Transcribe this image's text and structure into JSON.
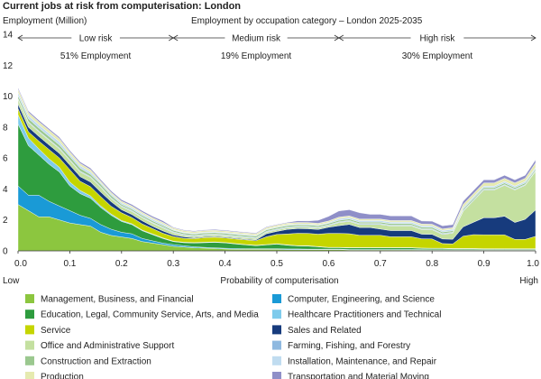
{
  "chart_data": {
    "type": "area",
    "title": "Current jobs at risk from computerisation: London",
    "subtitle": "Employment by occupation category – London 2025-2035",
    "ylabel": "Employment (Million)",
    "xlabel": "Probability of computerisation",
    "x_low_label": "Low",
    "x_high_label": "High",
    "ylim": [
      0,
      14
    ],
    "xlim": [
      0,
      1
    ],
    "y_ticks": [
      "0",
      "2",
      "4",
      "6",
      "8",
      "10",
      "12",
      "14"
    ],
    "x_ticks": [
      "0.0",
      "0.1",
      "0.2",
      "0.3",
      "0.4",
      "0.5",
      "0.6",
      "0.7",
      "0.8",
      "0.9",
      "1.0"
    ],
    "risk_bands": [
      {
        "label": "Low risk",
        "from": 0.0,
        "to": 0.3,
        "share": "51% Employment"
      },
      {
        "label": "Medium risk",
        "from": 0.3,
        "to": 0.62,
        "share": "19% Employment"
      },
      {
        "label": "High risk",
        "from": 0.62,
        "to": 1.0,
        "share": "30% Employment"
      }
    ],
    "x": [
      0.0,
      0.02,
      0.04,
      0.06,
      0.08,
      0.1,
      0.12,
      0.14,
      0.16,
      0.18,
      0.2,
      0.22,
      0.24,
      0.26,
      0.28,
      0.3,
      0.32,
      0.34,
      0.36,
      0.38,
      0.4,
      0.42,
      0.44,
      0.46,
      0.48,
      0.5,
      0.52,
      0.54,
      0.56,
      0.58,
      0.6,
      0.62,
      0.64,
      0.66,
      0.68,
      0.7,
      0.72,
      0.74,
      0.76,
      0.78,
      0.8,
      0.82,
      0.84,
      0.86,
      0.88,
      0.9,
      0.92,
      0.94,
      0.96,
      0.98,
      1.0
    ],
    "series": [
      {
        "name": "Management, Business, and Financial",
        "color": "#8cc63f",
        "values": [
          3.0,
          2.6,
          2.2,
          2.2,
          2.0,
          1.8,
          1.7,
          1.6,
          1.2,
          1.0,
          0.9,
          0.8,
          0.6,
          0.5,
          0.4,
          0.3,
          0.25,
          0.2,
          0.18,
          0.15,
          0.12,
          0.1,
          0.1,
          0.1,
          0.1,
          0.1,
          0.08,
          0.08,
          0.08,
          0.08,
          0.08,
          0.08,
          0.06,
          0.06,
          0.06,
          0.06,
          0.06,
          0.06,
          0.06,
          0.05,
          0.05,
          0.05,
          0.05,
          0.05,
          0.05,
          0.05,
          0.05,
          0.05,
          0.05,
          0.05,
          0.05
        ]
      },
      {
        "name": "Computer, Engineering, and Science",
        "color": "#1a9ad6",
        "values": [
          1.2,
          1.0,
          1.4,
          1.0,
          0.9,
          0.8,
          0.6,
          0.5,
          0.5,
          0.4,
          0.3,
          0.3,
          0.2,
          0.15,
          0.1,
          0.1,
          0.08,
          0.06,
          0.05,
          0.05,
          0.05,
          0.05,
          0.04,
          0.04,
          0.04,
          0.04,
          0.04,
          0.04,
          0.03,
          0.03,
          0.03,
          0.03,
          0.03,
          0.03,
          0.03,
          0.03,
          0.03,
          0.03,
          0.03,
          0.03,
          0.02,
          0.02,
          0.02,
          0.02,
          0.02,
          0.02,
          0.02,
          0.02,
          0.02,
          0.02,
          0.02
        ]
      },
      {
        "name": "Education, Legal, Community Service, Arts, and Media",
        "color": "#2e9c3e",
        "values": [
          4.0,
          3.2,
          2.6,
          2.4,
          2.2,
          1.6,
          1.4,
          1.3,
          1.1,
          0.9,
          0.7,
          0.6,
          0.5,
          0.4,
          0.3,
          0.2,
          0.2,
          0.25,
          0.3,
          0.35,
          0.35,
          0.3,
          0.25,
          0.2,
          0.25,
          0.3,
          0.25,
          0.2,
          0.2,
          0.15,
          0.1,
          0.1,
          0.1,
          0.1,
          0.1,
          0.1,
          0.1,
          0.1,
          0.1,
          0.08,
          0.08,
          0.08,
          0.06,
          0.06,
          0.06,
          0.05,
          0.05,
          0.05,
          0.05,
          0.05,
          0.05
        ]
      },
      {
        "name": "Healthcare Practitioners and Technical",
        "color": "#7ecbec",
        "values": [
          0.6,
          0.5,
          0.4,
          0.35,
          0.3,
          0.25,
          0.2,
          0.15,
          0.1,
          0.08,
          0.06,
          0.05,
          0.04,
          0.04,
          0.04,
          0.03,
          0.03,
          0.03,
          0.03,
          0.03,
          0.02,
          0.02,
          0.02,
          0.02,
          0.02,
          0.02,
          0.02,
          0.02,
          0.02,
          0.02,
          0.02,
          0.02,
          0.02,
          0.02,
          0.02,
          0.02,
          0.02,
          0.02,
          0.02,
          0.02,
          0.02,
          0.02,
          0.02,
          0.02,
          0.02,
          0.02,
          0.02,
          0.02,
          0.02,
          0.02,
          0.02
        ]
      },
      {
        "name": "Service",
        "color": "#c5d500",
        "values": [
          0.4,
          0.4,
          0.5,
          0.6,
          0.6,
          0.8,
          0.6,
          0.6,
          0.6,
          0.5,
          0.5,
          0.4,
          0.4,
          0.35,
          0.3,
          0.3,
          0.25,
          0.25,
          0.3,
          0.3,
          0.3,
          0.3,
          0.3,
          0.3,
          0.5,
          0.6,
          0.7,
          0.8,
          0.8,
          0.8,
          0.9,
          0.9,
          0.9,
          0.8,
          0.8,
          0.8,
          0.7,
          0.7,
          0.7,
          0.6,
          0.6,
          0.3,
          0.3,
          0.8,
          0.9,
          0.9,
          0.9,
          0.9,
          0.6,
          0.6,
          0.8
        ]
      },
      {
        "name": "Sales and Related",
        "color": "#173b7d",
        "values": [
          0.3,
          0.3,
          0.3,
          0.3,
          0.3,
          0.3,
          0.3,
          0.3,
          0.3,
          0.3,
          0.2,
          0.2,
          0.2,
          0.15,
          0.15,
          0.1,
          0.1,
          0.05,
          0.05,
          0.05,
          0.05,
          0.05,
          0.05,
          0.05,
          0.2,
          0.2,
          0.3,
          0.3,
          0.3,
          0.3,
          0.4,
          0.5,
          0.6,
          0.5,
          0.5,
          0.4,
          0.4,
          0.4,
          0.4,
          0.3,
          0.3,
          0.3,
          0.3,
          0.6,
          0.8,
          1.1,
          1.1,
          1.2,
          1.1,
          1.3,
          1.7
        ]
      },
      {
        "name": "Office and Administrative Support",
        "color": "#c4e0a0",
        "values": [
          0.3,
          0.3,
          0.3,
          0.3,
          0.3,
          0.3,
          0.3,
          0.3,
          0.3,
          0.2,
          0.2,
          0.2,
          0.2,
          0.2,
          0.2,
          0.15,
          0.1,
          0.1,
          0.1,
          0.1,
          0.1,
          0.1,
          0.1,
          0.1,
          0.1,
          0.1,
          0.1,
          0.1,
          0.1,
          0.1,
          0.1,
          0.2,
          0.2,
          0.2,
          0.2,
          0.3,
          0.3,
          0.3,
          0.3,
          0.3,
          0.3,
          0.3,
          0.4,
          1.0,
          1.4,
          1.8,
          1.8,
          2.0,
          2.1,
          2.2,
          2.5
        ]
      },
      {
        "name": "Farming, Fishing, and Forestry",
        "color": "#8fb9e0",
        "values": [
          0.05,
          0.05,
          0.05,
          0.05,
          0.05,
          0.05,
          0.05,
          0.05,
          0.05,
          0.05,
          0.05,
          0.05,
          0.05,
          0.05,
          0.05,
          0.05,
          0.05,
          0.05,
          0.05,
          0.05,
          0.05,
          0.05,
          0.05,
          0.05,
          0.05,
          0.05,
          0.05,
          0.05,
          0.05,
          0.05,
          0.05,
          0.05,
          0.05,
          0.05,
          0.05,
          0.05,
          0.05,
          0.05,
          0.05,
          0.05,
          0.05,
          0.05,
          0.05,
          0.05,
          0.05,
          0.05,
          0.05,
          0.05,
          0.05,
          0.05,
          0.05
        ]
      },
      {
        "name": "Construction and Extraction",
        "color": "#9bc88f",
        "values": [
          0.2,
          0.2,
          0.2,
          0.2,
          0.2,
          0.2,
          0.2,
          0.15,
          0.15,
          0.15,
          0.1,
          0.1,
          0.1,
          0.1,
          0.1,
          0.1,
          0.1,
          0.1,
          0.1,
          0.1,
          0.1,
          0.1,
          0.1,
          0.1,
          0.1,
          0.1,
          0.1,
          0.1,
          0.1,
          0.1,
          0.1,
          0.1,
          0.1,
          0.1,
          0.1,
          0.1,
          0.1,
          0.1,
          0.1,
          0.1,
          0.1,
          0.1,
          0.1,
          0.1,
          0.1,
          0.1,
          0.1,
          0.1,
          0.1,
          0.1,
          0.1
        ]
      },
      {
        "name": "Installation, Maintenance, and Repair",
        "color": "#c0dcf0",
        "values": [
          0.2,
          0.2,
          0.2,
          0.2,
          0.2,
          0.15,
          0.15,
          0.15,
          0.1,
          0.1,
          0.1,
          0.1,
          0.1,
          0.1,
          0.1,
          0.05,
          0.05,
          0.05,
          0.05,
          0.05,
          0.05,
          0.05,
          0.05,
          0.05,
          0.05,
          0.05,
          0.05,
          0.05,
          0.05,
          0.05,
          0.05,
          0.1,
          0.1,
          0.1,
          0.1,
          0.1,
          0.1,
          0.1,
          0.1,
          0.1,
          0.1,
          0.1,
          0.1,
          0.1,
          0.1,
          0.1,
          0.1,
          0.1,
          0.1,
          0.1,
          0.1
        ]
      },
      {
        "name": "Production",
        "color": "#e6eab0",
        "values": [
          0.2,
          0.2,
          0.2,
          0.2,
          0.2,
          0.15,
          0.15,
          0.15,
          0.1,
          0.1,
          0.1,
          0.1,
          0.1,
          0.1,
          0.1,
          0.1,
          0.1,
          0.1,
          0.1,
          0.1,
          0.1,
          0.1,
          0.1,
          0.1,
          0.1,
          0.1,
          0.1,
          0.1,
          0.1,
          0.1,
          0.1,
          0.1,
          0.1,
          0.1,
          0.1,
          0.1,
          0.1,
          0.1,
          0.1,
          0.1,
          0.1,
          0.1,
          0.1,
          0.2,
          0.2,
          0.2,
          0.2,
          0.2,
          0.2,
          0.2,
          0.3
        ]
      },
      {
        "name": "Transportation and Material Moving",
        "color": "#8f8fc8",
        "values": [
          0.1,
          0.1,
          0.1,
          0.1,
          0.1,
          0.1,
          0.1,
          0.1,
          0.1,
          0.1,
          0.1,
          0.1,
          0.1,
          0.1,
          0.1,
          0.05,
          0.05,
          0.05,
          0.05,
          0.05,
          0.05,
          0.05,
          0.05,
          0.05,
          0.05,
          0.05,
          0.05,
          0.1,
          0.1,
          0.2,
          0.3,
          0.4,
          0.4,
          0.4,
          0.3,
          0.3,
          0.3,
          0.3,
          0.3,
          0.2,
          0.2,
          0.2,
          0.2,
          0.2,
          0.2,
          0.2,
          0.2,
          0.2,
          0.2,
          0.2,
          0.2
        ]
      }
    ],
    "legend_order": [
      "Management, Business, and Financial",
      "Computer, Engineering, and Science",
      "Education, Legal, Community Service, Arts, and Media",
      "Healthcare Practitioners and Technical",
      "Service",
      "Sales and Related",
      "Office and Administrative Support",
      "Farming, Fishing, and Forestry",
      "Construction and Extraction",
      "Installation, Maintenance, and Repair",
      "Production",
      "Transportation and Material Moving"
    ],
    "legend_position": "bottom"
  }
}
